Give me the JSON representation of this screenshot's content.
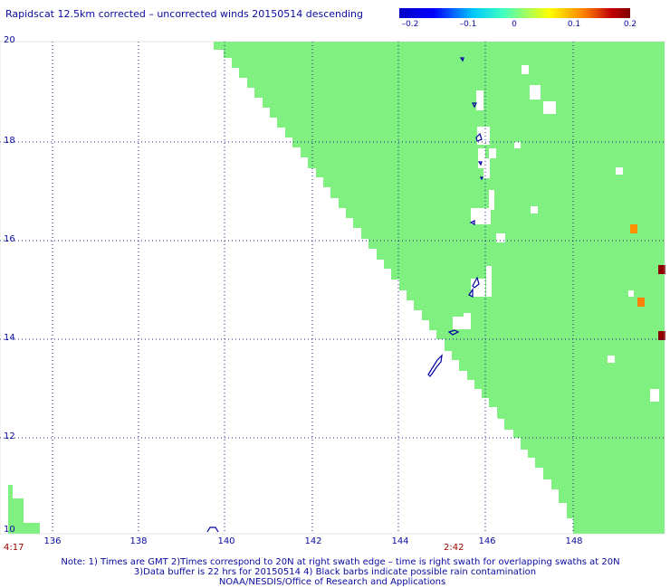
{
  "title": "Rapidscat 12.5km corrected – uncorrected winds 20150514 descending",
  "colorbar": {
    "labels": [
      "–0.2",
      "–0.1",
      "0",
      "0.1",
      "0.2"
    ],
    "colors": [
      "#0000c8",
      "#00c8ff",
      "#a0ff60",
      "#ffff00",
      "#ff8000",
      "#800000"
    ]
  },
  "axes": {
    "lat_labels": [
      "20",
      "18",
      "16",
      "14",
      "12",
      "10"
    ],
    "lon_labels": [
      "136",
      "138",
      "140",
      "142",
      "144",
      "146",
      "148"
    ]
  },
  "times": {
    "left": "4:17",
    "center": "2:42"
  },
  "notes": [
    "Note: 1) Times are GMT 2)Times correspond to 20N at right swath edge – time is right swath for overlapping swaths at 20N",
    "3)Data buffer is 22 hrs for 20150514 4) Black barbs indicate possible rain contamination",
    "NOAA/NESDIS/Office of Research and Applications"
  ],
  "map_colors": {
    "swath": "#80f080",
    "orange": "#ff9000",
    "darkred": "#900000",
    "coast": "#0000a0"
  }
}
